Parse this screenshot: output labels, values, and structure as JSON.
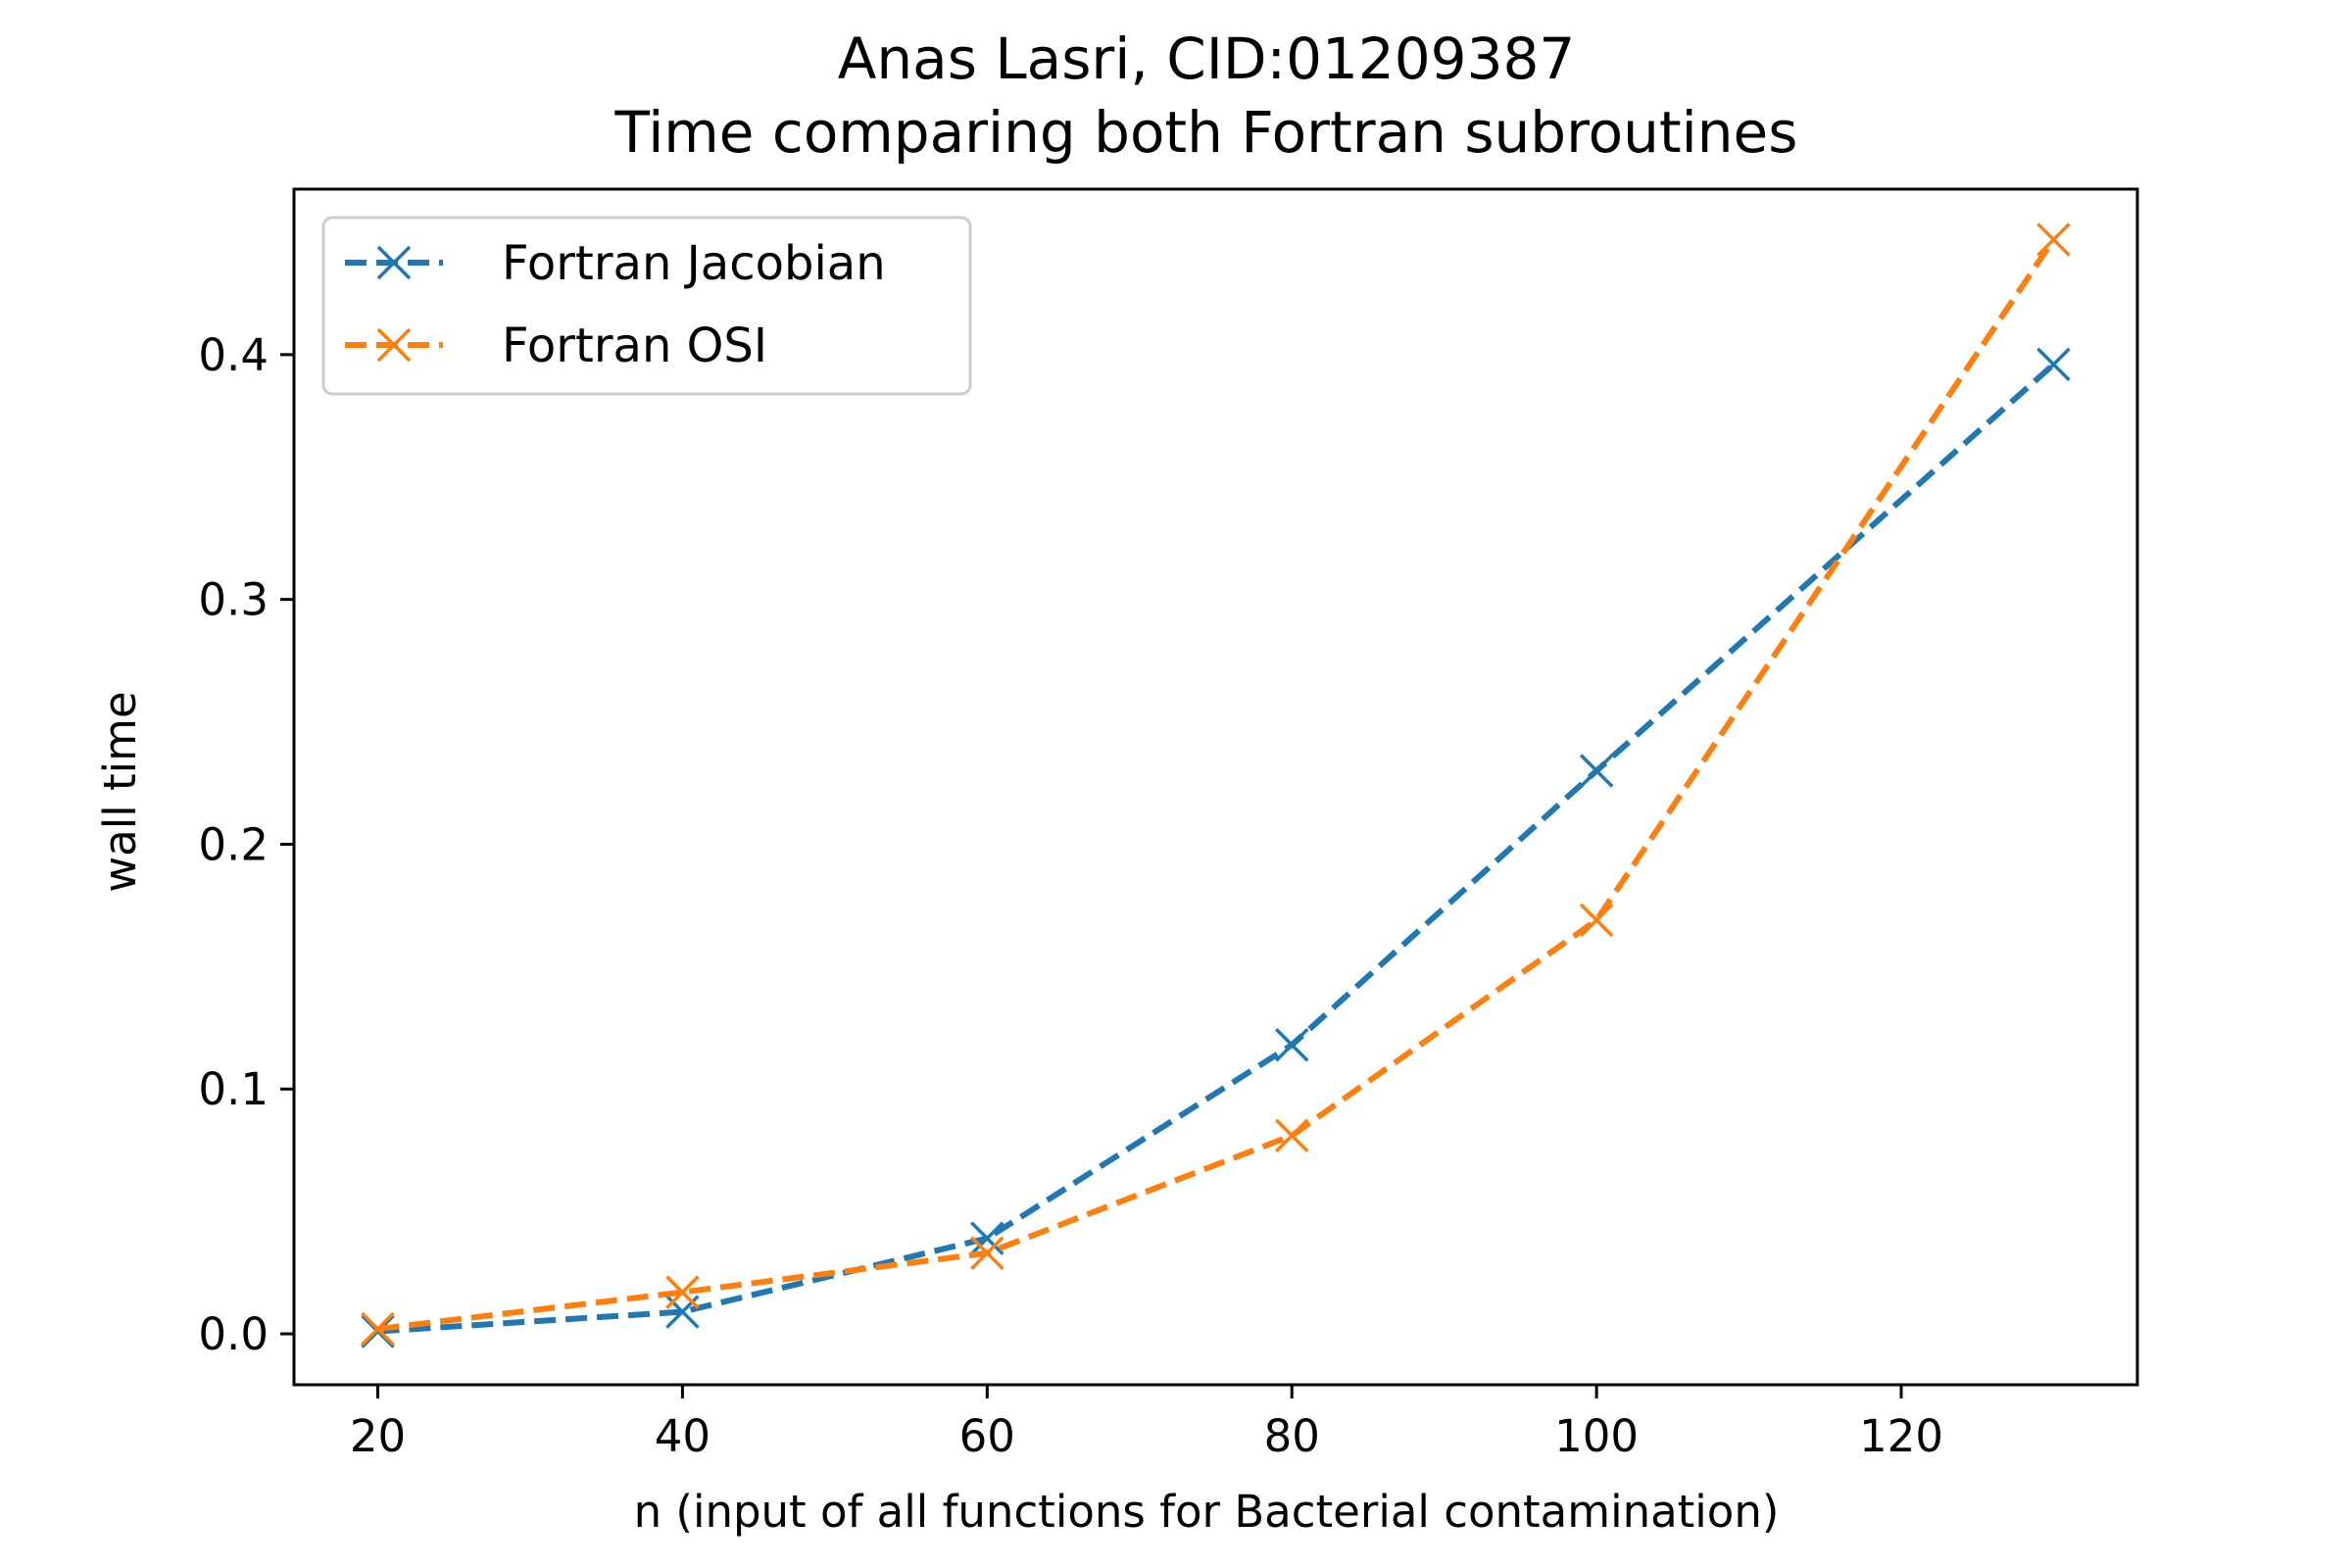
{
  "chart_data": {
    "type": "line",
    "title_line1": "Anas Lasri, CID:01209387",
    "title_line2": "Time comparing both Fortran subroutines",
    "xlabel": "n (input of all functions for Bacterial contamination)",
    "ylabel": "wall time",
    "xlim": [
      14.5,
      135.5
    ],
    "ylim": [
      -0.0208,
      0.4676
    ],
    "x_ticks": [
      20,
      40,
      60,
      80,
      100,
      120
    ],
    "y_ticks": [
      0.0,
      0.1,
      0.2,
      0.3,
      0.4
    ],
    "x_tick_labels": [
      "20",
      "40",
      "60",
      "80",
      "100",
      "120"
    ],
    "y_tick_labels": [
      "0.0",
      "0.1",
      "0.2",
      "0.3",
      "0.4"
    ],
    "grid": false,
    "legend_position": "upper-left",
    "series": [
      {
        "name": "Fortran Jacobian",
        "color": "#1f77b4",
        "line_style": "dashed",
        "marker": "x",
        "x": [
          20,
          40,
          60,
          80,
          100,
          130
        ],
        "y": [
          0.001,
          0.009,
          0.039,
          0.118,
          0.23,
          0.396
        ]
      },
      {
        "name": "Fortran OSI",
        "color": "#ff7f0e",
        "line_style": "dashed",
        "marker": "x",
        "x": [
          20,
          40,
          60,
          80,
          100,
          130
        ],
        "y": [
          0.002,
          0.017,
          0.033,
          0.081,
          0.169,
          0.447
        ]
      }
    ]
  }
}
